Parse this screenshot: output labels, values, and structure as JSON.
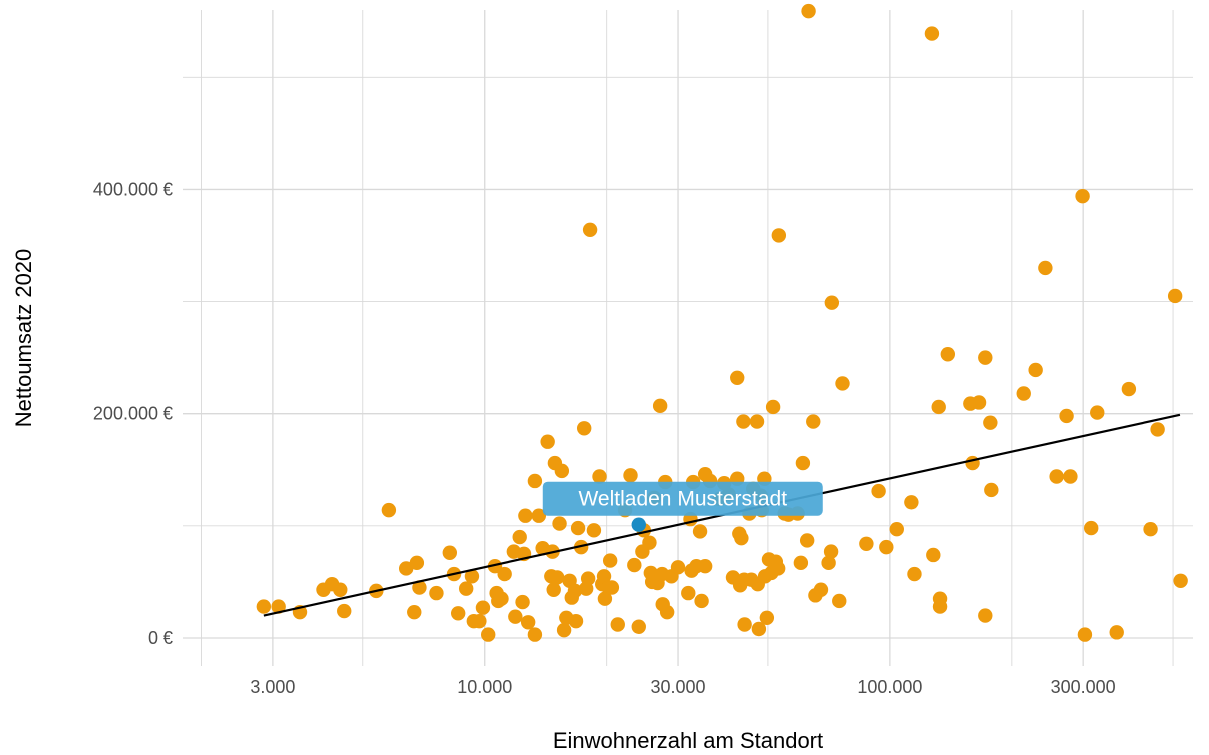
{
  "chart_data": {
    "type": "scatter",
    "x_scale": "log",
    "xlabel": "Einwohnerzahl am Standort",
    "ylabel": "Nettoumsatz 2020",
    "xlim": [
      1800,
      560000
    ],
    "ylim": [
      -25000,
      560000
    ],
    "x_ticks": [
      {
        "value": 3000,
        "label": "3.000"
      },
      {
        "value": 10000,
        "label": "10.000"
      },
      {
        "value": 30000,
        "label": "30.000"
      },
      {
        "value": 100000,
        "label": "100.000"
      },
      {
        "value": 300000,
        "label": "300.000"
      }
    ],
    "x_minor_gridlines": [
      2000,
      5000,
      20000,
      50000,
      200000,
      500000
    ],
    "y_ticks": [
      {
        "value": 0,
        "label": "0 €"
      },
      {
        "value": 200000,
        "label": "200.000 €"
      },
      {
        "value": 400000,
        "label": "400.000 €"
      }
    ],
    "y_minor_gridlines": [
      100000,
      300000,
      500000
    ],
    "grid": true,
    "legend": "none",
    "colors": {
      "points": "#EE9A0C",
      "highlight": "#1A8BC4",
      "label_bg": "#4AA7D6",
      "trend": "#000000",
      "grid": "#d9d9d9"
    },
    "trend_line": {
      "x": [
        2850,
        520000
      ],
      "y": [
        20000,
        199000
      ]
    },
    "highlight": {
      "label": "Weltladen Musterstadt",
      "x": 24000,
      "y": 101000
    },
    "points": [
      [
        2850,
        28000
      ],
      [
        3100,
        28000
      ],
      [
        3500,
        23000
      ],
      [
        4000,
        43000
      ],
      [
        4200,
        48000
      ],
      [
        4400,
        43000
      ],
      [
        4500,
        24000
      ],
      [
        5400,
        42000
      ],
      [
        5800,
        114000
      ],
      [
        6400,
        62000
      ],
      [
        6800,
        67000
      ],
      [
        6700,
        23000
      ],
      [
        6900,
        45000
      ],
      [
        7600,
        40000
      ],
      [
        8200,
        76000
      ],
      [
        8400,
        57000
      ],
      [
        8600,
        22000
      ],
      [
        9000,
        44000
      ],
      [
        9300,
        55000
      ],
      [
        9400,
        15000
      ],
      [
        9700,
        15000
      ],
      [
        9900,
        27000
      ],
      [
        10200,
        3000
      ],
      [
        10600,
        64000
      ],
      [
        10700,
        40000
      ],
      [
        10800,
        33000
      ],
      [
        11000,
        35000
      ],
      [
        11200,
        57000
      ],
      [
        11800,
        77000
      ],
      [
        11900,
        19000
      ],
      [
        12200,
        90000
      ],
      [
        12400,
        32000
      ],
      [
        12500,
        75000
      ],
      [
        12600,
        109000
      ],
      [
        12800,
        14000
      ],
      [
        13300,
        3000
      ],
      [
        13300,
        140000
      ],
      [
        13600,
        109000
      ],
      [
        13900,
        80000
      ],
      [
        14300,
        175000
      ],
      [
        14600,
        55000
      ],
      [
        14700,
        77000
      ],
      [
        14800,
        43000
      ],
      [
        14900,
        156000
      ],
      [
        15100,
        54000
      ],
      [
        15300,
        102000
      ],
      [
        15500,
        149000
      ],
      [
        15700,
        7000
      ],
      [
        15900,
        18000
      ],
      [
        16200,
        51000
      ],
      [
        16400,
        36000
      ],
      [
        16700,
        42000
      ],
      [
        16800,
        15000
      ],
      [
        17000,
        98000
      ],
      [
        17300,
        81000
      ],
      [
        17600,
        187000
      ],
      [
        17800,
        44000
      ],
      [
        18000,
        53000
      ],
      [
        18200,
        364000
      ],
      [
        18600,
        96000
      ],
      [
        19200,
        144000
      ],
      [
        19500,
        48000
      ],
      [
        19700,
        55000
      ],
      [
        19800,
        35000
      ],
      [
        20200,
        45000
      ],
      [
        20400,
        69000
      ],
      [
        20600,
        45000
      ],
      [
        21300,
        12000
      ],
      [
        22200,
        114000
      ],
      [
        22900,
        145000
      ],
      [
        23400,
        65000
      ],
      [
        24000,
        10000
      ],
      [
        24500,
        77000
      ],
      [
        24700,
        96000
      ],
      [
        25500,
        85000
      ],
      [
        25700,
        58000
      ],
      [
        25900,
        50000
      ],
      [
        26200,
        125000
      ],
      [
        26700,
        49000
      ],
      [
        27100,
        207000
      ],
      [
        27400,
        57000
      ],
      [
        27500,
        30000
      ],
      [
        27900,
        139000
      ],
      [
        28200,
        23000
      ],
      [
        28900,
        55000
      ],
      [
        30000,
        63000
      ],
      [
        31800,
        40000
      ],
      [
        32200,
        106000
      ],
      [
        32400,
        60000
      ],
      [
        32700,
        139000
      ],
      [
        33300,
        64000
      ],
      [
        34000,
        95000
      ],
      [
        34300,
        33000
      ],
      [
        35000,
        146000
      ],
      [
        35000,
        64000
      ],
      [
        36000,
        140000
      ],
      [
        38000,
        124000
      ],
      [
        39000,
        138000
      ],
      [
        40000,
        128000
      ],
      [
        41000,
        54000
      ],
      [
        42000,
        232000
      ],
      [
        42000,
        142000
      ],
      [
        42500,
        93000
      ],
      [
        42700,
        47000
      ],
      [
        43000,
        89000
      ],
      [
        43500,
        193000
      ],
      [
        43700,
        52000
      ],
      [
        43800,
        12000
      ],
      [
        45000,
        111000
      ],
      [
        45500,
        52000
      ],
      [
        46000,
        133000
      ],
      [
        47000,
        193000
      ],
      [
        47200,
        48000
      ],
      [
        47500,
        8000
      ],
      [
        48000,
        127000
      ],
      [
        48300,
        114000
      ],
      [
        49000,
        142000
      ],
      [
        49200,
        55000
      ],
      [
        49700,
        18000
      ],
      [
        50300,
        70000
      ],
      [
        51000,
        58000
      ],
      [
        51500,
        206000
      ],
      [
        52300,
        68000
      ],
      [
        53000,
        62000
      ],
      [
        53200,
        359000
      ],
      [
        55000,
        111000
      ],
      [
        56200,
        110000
      ],
      [
        59200,
        111000
      ],
      [
        60300,
        67000
      ],
      [
        61000,
        156000
      ],
      [
        62500,
        87000
      ],
      [
        63000,
        559000
      ],
      [
        64700,
        193000
      ],
      [
        65500,
        38000
      ],
      [
        67600,
        43000
      ],
      [
        70600,
        67000
      ],
      [
        71600,
        77000
      ],
      [
        71900,
        299000
      ],
      [
        75000,
        33000
      ],
      [
        76400,
        227000
      ],
      [
        87500,
        84000
      ],
      [
        93800,
        131000
      ],
      [
        98000,
        81000
      ],
      [
        104000,
        97000
      ],
      [
        113000,
        121000
      ],
      [
        115000,
        57000
      ],
      [
        127000,
        539000
      ],
      [
        128000,
        74000
      ],
      [
        132000,
        206000
      ],
      [
        133000,
        35000
      ],
      [
        133000,
        28000
      ],
      [
        139000,
        253000
      ],
      [
        158000,
        209000
      ],
      [
        160000,
        156000
      ],
      [
        166000,
        210000
      ],
      [
        172000,
        20000
      ],
      [
        172000,
        250000
      ],
      [
        177000,
        192000
      ],
      [
        178000,
        132000
      ],
      [
        214000,
        218000
      ],
      [
        229000,
        239000
      ],
      [
        242000,
        330000
      ],
      [
        258000,
        144000
      ],
      [
        273000,
        198000
      ],
      [
        279000,
        144000
      ],
      [
        299000,
        394000
      ],
      [
        303000,
        3000
      ],
      [
        314000,
        98000
      ],
      [
        325000,
        201000
      ],
      [
        363000,
        5000
      ],
      [
        389000,
        222000
      ],
      [
        440000,
        97000
      ],
      [
        458000,
        186000
      ],
      [
        506000,
        305000
      ],
      [
        522000,
        51000
      ]
    ]
  }
}
